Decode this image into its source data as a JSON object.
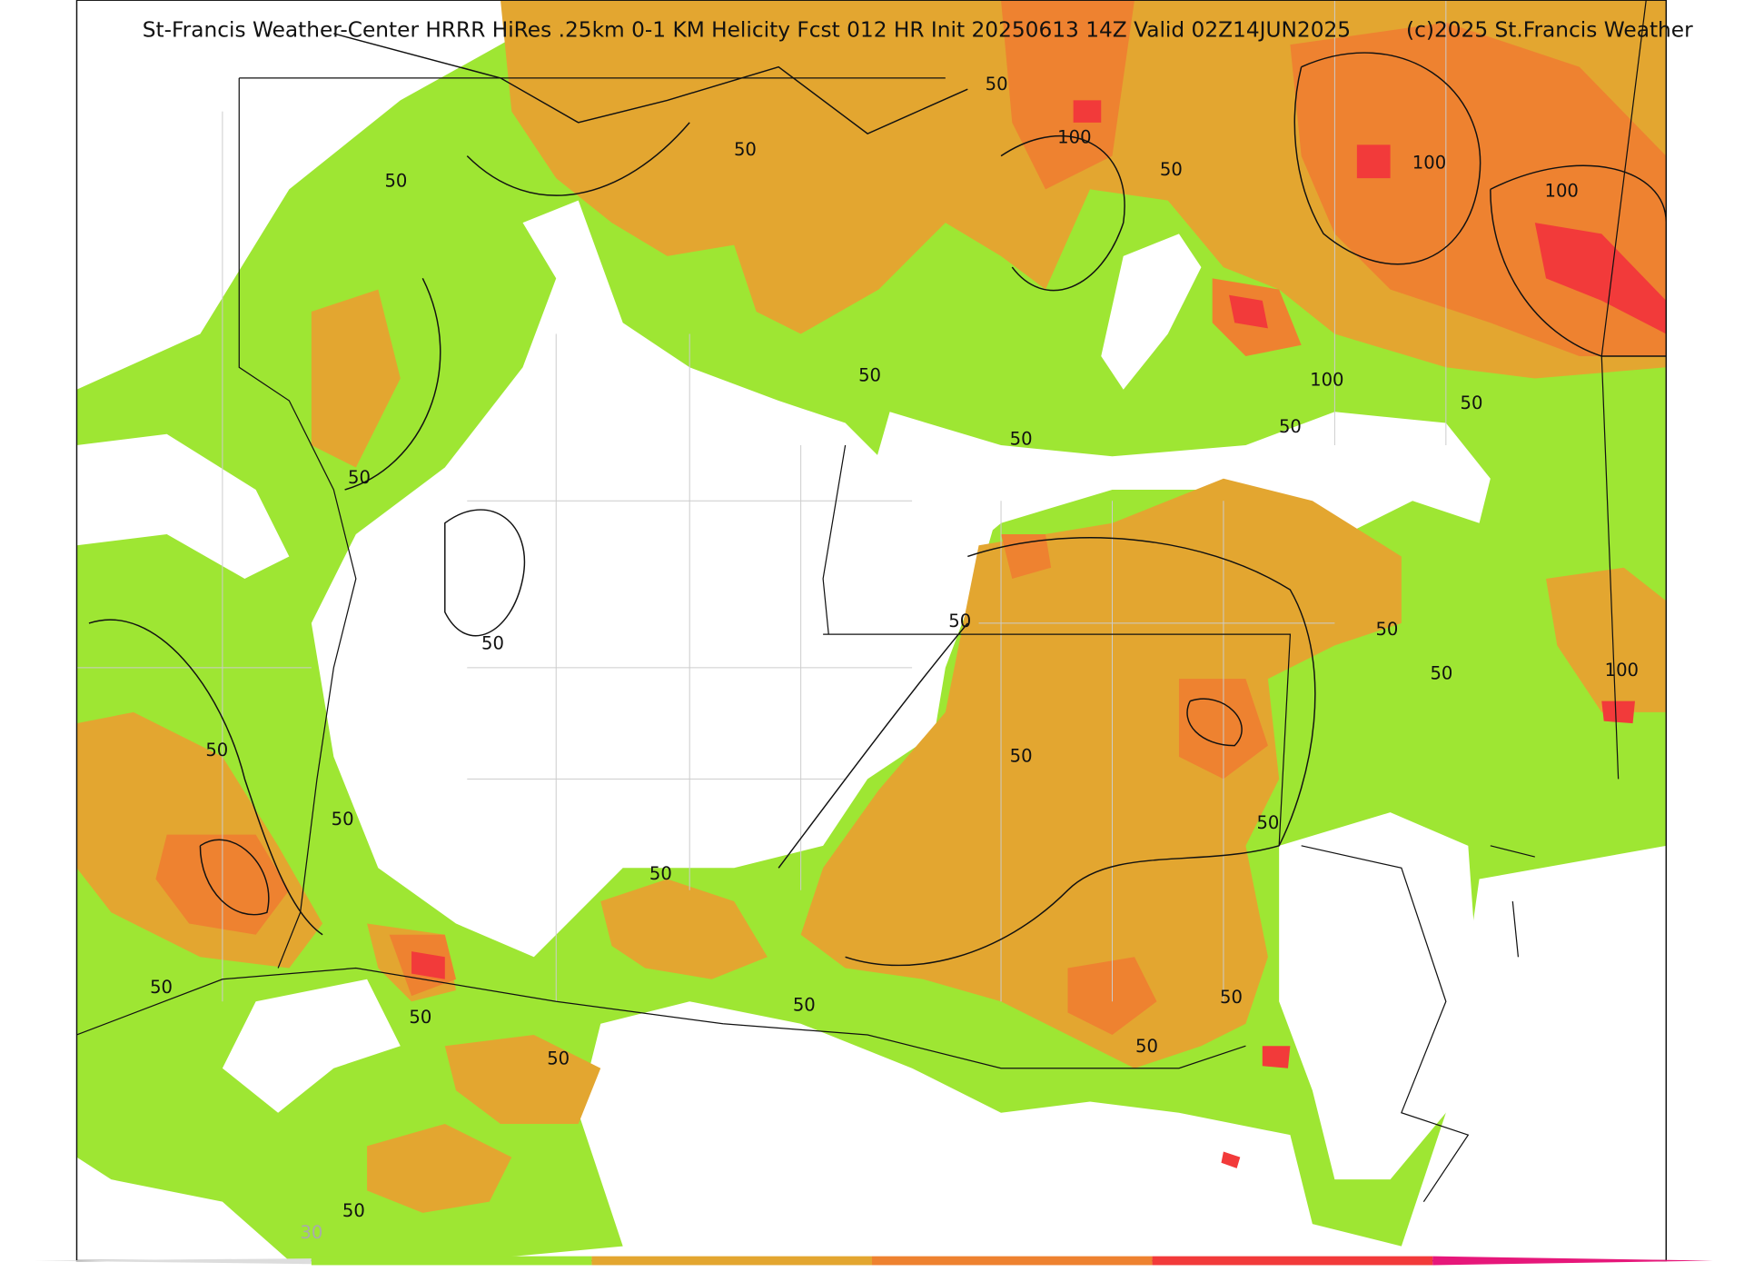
{
  "header": {
    "title": "St-Francis Weather-Center HRRR HiRes .25km 0-1 KM Helicity Fcst 012 HR Init 20250613 14Z  Valid 02Z14JUN2025",
    "copyright": "(c)2025 St.Francis Weather"
  },
  "contour_labels": [
    "50",
    "100",
    "50",
    "100",
    "50",
    "100",
    "50",
    "100",
    "50",
    "50",
    "50",
    "50",
    "50",
    "50",
    "50",
    "50",
    "50",
    "100",
    "50",
    "50",
    "50",
    "50",
    "50",
    "50",
    "50",
    "50",
    "50",
    "50",
    "50",
    "50"
  ],
  "colorbar": {
    "label": "30"
  }
}
